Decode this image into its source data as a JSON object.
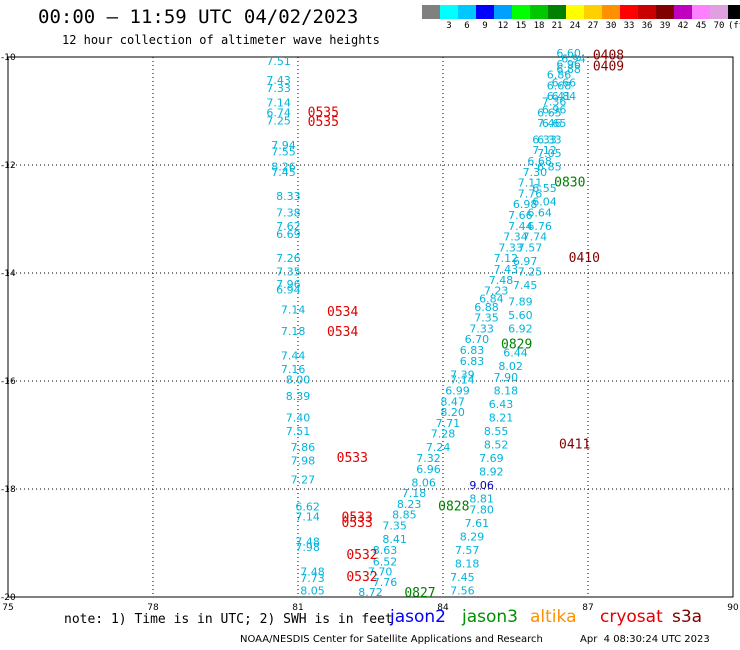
{
  "header": {
    "title": "00:00 – 11:59 UTC 04/02/2023",
    "subtitle": "12 hour collection of altimeter wave heights"
  },
  "scale": {
    "colors": [
      "#808080",
      "#00ffff",
      "#00c8ff",
      "#0000ff",
      "#00a0ff",
      "#00ff00",
      "#00c800",
      "#008000",
      "#ffff00",
      "#ffd000",
      "#ff9000",
      "#ff0000",
      "#c80000",
      "#800000",
      "#c000c0",
      "#ff80ff",
      "#e0a0e0",
      "#000000"
    ],
    "labels": [
      "",
      "3",
      "6",
      "9",
      "12",
      "15",
      "18",
      "21",
      "24",
      "27",
      "30",
      "33",
      "36",
      "39",
      "42",
      "45",
      "70",
      "(ft)"
    ]
  },
  "axes": {
    "lon_ticks": [
      "75",
      "78",
      "81",
      "84",
      "87",
      "90"
    ],
    "lat_ticks": [
      "-10",
      "-12",
      "-14",
      "-16",
      "-18",
      "-20"
    ]
  },
  "wave_points": [
    {
      "v": "7.51",
      "lon": 80.6,
      "lat": -10.15
    },
    {
      "v": "7.43",
      "lon": 80.6,
      "lat": -10.5
    },
    {
      "v": "7.33",
      "lon": 80.6,
      "lat": -10.65
    },
    {
      "v": "7.14",
      "lon": 80.6,
      "lat": -10.92
    },
    {
      "v": "6.74",
      "lon": 80.6,
      "lat": -11.1
    },
    {
      "v": "7.25",
      "lon": 80.6,
      "lat": -11.25
    },
    {
      "v": "7.94",
      "lon": 80.7,
      "lat": -11.7
    },
    {
      "v": "7.55",
      "lon": 80.7,
      "lat": -11.82
    },
    {
      "v": "8.26",
      "lon": 80.7,
      "lat": -12.1
    },
    {
      "v": "7.45",
      "lon": 80.7,
      "lat": -12.2
    },
    {
      "v": "8.33",
      "lon": 80.8,
      "lat": -12.65
    },
    {
      "v": "7.38",
      "lon": 80.8,
      "lat": -12.95
    },
    {
      "v": "7.62",
      "lon": 80.8,
      "lat": -13.2
    },
    {
      "v": "6.69",
      "lon": 80.8,
      "lat": -13.35
    },
    {
      "v": "7.26",
      "lon": 80.8,
      "lat": -13.8
    },
    {
      "v": "7.35",
      "lon": 80.8,
      "lat": -14.05
    },
    {
      "v": "7.96",
      "lon": 80.8,
      "lat": -14.28
    },
    {
      "v": "6.94",
      "lon": 80.8,
      "lat": -14.38
    },
    {
      "v": "7.14",
      "lon": 80.9,
      "lat": -14.75
    },
    {
      "v": "7.18",
      "lon": 80.9,
      "lat": -15.15
    },
    {
      "v": "7.44",
      "lon": 80.9,
      "lat": -15.6
    },
    {
      "v": "7.16",
      "lon": 80.9,
      "lat": -15.85
    },
    {
      "v": "8.00",
      "lon": 81.0,
      "lat": -16.05
    },
    {
      "v": "8.39",
      "lon": 81.0,
      "lat": -16.35
    },
    {
      "v": "7.40",
      "lon": 81.0,
      "lat": -16.75
    },
    {
      "v": "7.51",
      "lon": 81.0,
      "lat": -17.0
    },
    {
      "v": "7.86",
      "lon": 81.1,
      "lat": -17.3
    },
    {
      "v": "7.98",
      "lon": 81.1,
      "lat": -17.55
    },
    {
      "v": "7.27",
      "lon": 81.1,
      "lat": -17.9
    },
    {
      "v": "6.62",
      "lon": 81.2,
      "lat": -18.4
    },
    {
      "v": "7.14",
      "lon": 81.2,
      "lat": -18.58
    },
    {
      "v": "7.48",
      "lon": 81.2,
      "lat": -19.05
    },
    {
      "v": "7.98",
      "lon": 81.2,
      "lat": -19.15
    },
    {
      "v": "7.48",
      "lon": 81.3,
      "lat": -19.6
    },
    {
      "v": "7.73",
      "lon": 81.3,
      "lat": -19.72
    },
    {
      "v": "8.05",
      "lon": 81.3,
      "lat": -19.95
    },
    {
      "v": "8.72",
      "lon": 82.5,
      "lat": -19.98
    },
    {
      "v": "7.76",
      "lon": 82.8,
      "lat": -19.8
    },
    {
      "v": "7.70",
      "lon": 82.7,
      "lat": -19.6
    },
    {
      "v": "6.52",
      "lon": 82.8,
      "lat": -19.42
    },
    {
      "v": "8.63",
      "lon": 82.8,
      "lat": -19.2
    },
    {
      "v": "8.41",
      "lon": 83.0,
      "lat": -19.0
    },
    {
      "v": "7.35",
      "lon": 83.0,
      "lat": -18.75
    },
    {
      "v": "8.85",
      "lon": 83.2,
      "lat": -18.55
    },
    {
      "v": "8.23",
      "lon": 83.3,
      "lat": -18.35
    },
    {
      "v": "7.18",
      "lon": 83.4,
      "lat": -18.15
    },
    {
      "v": "8.06",
      "lon": 83.6,
      "lat": -17.95
    },
    {
      "v": "6.96",
      "lon": 83.7,
      "lat": -17.7
    },
    {
      "v": "7.32",
      "lon": 83.7,
      "lat": -17.5
    },
    {
      "v": "7.24",
      "lon": 83.9,
      "lat": -17.3
    },
    {
      "v": "7.28",
      "lon": 84.0,
      "lat": -17.05
    },
    {
      "v": "7.71",
      "lon": 84.1,
      "lat": -16.85
    },
    {
      "v": "8.20",
      "lon": 84.2,
      "lat": -16.65
    },
    {
      "v": "8.47",
      "lon": 84.2,
      "lat": -16.45
    },
    {
      "v": "6.99",
      "lon": 84.3,
      "lat": -16.25
    },
    {
      "v": "7.14",
      "lon": 84.4,
      "lat": -16.05
    },
    {
      "v": "7.39",
      "lon": 84.4,
      "lat": -15.95
    },
    {
      "v": "6.83",
      "lon": 84.6,
      "lat": -15.7
    },
    {
      "v": "6.83",
      "lon": 84.6,
      "lat": -15.5
    },
    {
      "v": "6.70",
      "lon": 84.7,
      "lat": -15.3
    },
    {
      "v": "7.33",
      "lon": 84.8,
      "lat": -15.1
    },
    {
      "v": "7.35",
      "lon": 84.9,
      "lat": -14.9
    },
    {
      "v": "6.88",
      "lon": 84.9,
      "lat": -14.7
    },
    {
      "v": "6.84",
      "lon": 85.0,
      "lat": -14.55
    },
    {
      "v": "7.23",
      "lon": 85.1,
      "lat": -14.4
    },
    {
      "v": "7.48",
      "lon": 85.2,
      "lat": -14.2
    },
    {
      "v": "7.43",
      "lon": 85.3,
      "lat": -14.0
    },
    {
      "v": "7.12",
      "lon": 85.3,
      "lat": -13.8
    },
    {
      "v": "7.33",
      "lon": 85.4,
      "lat": -13.6
    },
    {
      "v": "7.34",
      "lon": 85.5,
      "lat": -13.4
    },
    {
      "v": "7.44",
      "lon": 85.6,
      "lat": -13.2
    },
    {
      "v": "7.66",
      "lon": 85.6,
      "lat": -13.0
    },
    {
      "v": "6.98",
      "lon": 85.7,
      "lat": -12.8
    },
    {
      "v": "7.76",
      "lon": 85.8,
      "lat": -12.6
    },
    {
      "v": "7.11",
      "lon": 85.8,
      "lat": -12.4
    },
    {
      "v": "7.30",
      "lon": 85.9,
      "lat": -12.2
    },
    {
      "v": "6.68",
      "lon": 86.0,
      "lat": -12.0
    },
    {
      "v": "7.12",
      "lon": 86.1,
      "lat": -11.8
    },
    {
      "v": "6.33",
      "lon": 86.1,
      "lat": -11.6
    },
    {
      "v": "7.46",
      "lon": 86.2,
      "lat": -11.3
    },
    {
      "v": "6.65",
      "lon": 86.2,
      "lat": -11.1
    },
    {
      "v": "7.36",
      "lon": 86.3,
      "lat": -10.9
    },
    {
      "v": "6.41",
      "lon": 86.4,
      "lat": -10.8
    },
    {
      "v": "6.68",
      "lon": 86.4,
      "lat": -10.6
    },
    {
      "v": "6.86",
      "lon": 86.4,
      "lat": -10.4
    },
    {
      "v": "6.96",
      "lon": 86.6,
      "lat": -10.2
    },
    {
      "v": "6.60",
      "lon": 86.6,
      "lat": -10.0
    },
    {
      "v": "7.56",
      "lon": 84.4,
      "lat": -19.95
    },
    {
      "v": "7.45",
      "lon": 84.4,
      "lat": -19.7
    },
    {
      "v": "8.18",
      "lon": 84.5,
      "lat": -19.45
    },
    {
      "v": "7.57",
      "lon": 84.5,
      "lat": -19.2
    },
    {
      "v": "8.29",
      "lon": 84.6,
      "lat": -18.95
    },
    {
      "v": "7.61",
      "lon": 84.7,
      "lat": -18.7
    },
    {
      "v": "7.80",
      "lon": 84.8,
      "lat": -18.45
    },
    {
      "v": "8.81",
      "lon": 84.8,
      "lat": -18.25
    },
    {
      "v": "9.06",
      "lon": 84.8,
      "lat": -18.0
    },
    {
      "v": "8.92",
      "lon": 85.0,
      "lat": -17.75
    },
    {
      "v": "7.69",
      "lon": 85.0,
      "lat": -17.5
    },
    {
      "v": "8.52",
      "lon": 85.1,
      "lat": -17.25
    },
    {
      "v": "8.55",
      "lon": 85.1,
      "lat": -17.0
    },
    {
      "v": "8.21",
      "lon": 85.2,
      "lat": -16.75
    },
    {
      "v": "6.43",
      "lon": 85.2,
      "lat": -16.5
    },
    {
      "v": "8.18",
      "lon": 85.3,
      "lat": -16.25
    },
    {
      "v": "7.90",
      "lon": 85.3,
      "lat": -16.0
    },
    {
      "v": "8.02",
      "lon": 85.4,
      "lat": -15.8
    },
    {
      "v": "6.44",
      "lon": 85.5,
      "lat": -15.55
    },
    {
      "v": "6.92",
      "lon": 85.6,
      "lat": -15.1
    },
    {
      "v": "5.60",
      "lon": 85.6,
      "lat": -14.85
    },
    {
      "v": "7.89",
      "lon": 85.6,
      "lat": -14.6
    },
    {
      "v": "7.45",
      "lon": 85.7,
      "lat": -14.3
    },
    {
      "v": "7.25",
      "lon": 85.8,
      "lat": -14.05
    },
    {
      "v": "6.97",
      "lon": 85.7,
      "lat": -13.85
    },
    {
      "v": "7.57",
      "lon": 85.8,
      "lat": -13.6
    },
    {
      "v": "7.74",
      "lon": 85.9,
      "lat": -13.4
    },
    {
      "v": "6.76",
      "lon": 86.0,
      "lat": -13.2
    },
    {
      "v": "6.64",
      "lon": 86.0,
      "lat": -12.95
    },
    {
      "v": "6.04",
      "lon": 86.1,
      "lat": -12.75
    },
    {
      "v": "6.55",
      "lon": 86.1,
      "lat": -12.5
    },
    {
      "v": "6.85",
      "lon": 86.2,
      "lat": -12.1
    },
    {
      "v": "7.05",
      "lon": 86.2,
      "lat": -11.85
    },
    {
      "v": "6.33",
      "lon": 86.2,
      "lat": -11.6
    },
    {
      "v": "6.65",
      "lon": 86.3,
      "lat": -11.3
    },
    {
      "v": "6.96",
      "lon": 86.3,
      "lat": -11.05
    },
    {
      "v": "6.84",
      "lon": 86.5,
      "lat": -10.8
    },
    {
      "v": "6.66",
      "lon": 86.5,
      "lat": -10.55
    },
    {
      "v": "6.88",
      "lon": 86.6,
      "lat": -10.3
    },
    {
      "v": "6.94",
      "lon": 86.7,
      "lat": -10.1
    }
  ],
  "track_labels": [
    {
      "t": "0535",
      "lon": 81.2,
      "lat": -11.1,
      "c": "#e00000"
    },
    {
      "t": "0535",
      "lon": 81.2,
      "lat": -11.28,
      "c": "#e00000"
    },
    {
      "t": "0534",
      "lon": 81.6,
      "lat": -14.8,
      "c": "#e00000"
    },
    {
      "t": "0534",
      "lon": 81.6,
      "lat": -15.17,
      "c": "#e00000"
    },
    {
      "t": "0533",
      "lon": 81.8,
      "lat": -17.5,
      "c": "#e00000"
    },
    {
      "t": "0533",
      "lon": 81.9,
      "lat": -18.6,
      "c": "#e00000"
    },
    {
      "t": "0533",
      "lon": 81.9,
      "lat": -18.7,
      "c": "#e00000"
    },
    {
      "t": "0532",
      "lon": 82.0,
      "lat": -19.3,
      "c": "#e00000"
    },
    {
      "t": "0532",
      "lon": 82.0,
      "lat": -19.7,
      "c": "#e00000"
    },
    {
      "t": "0827",
      "lon": 83.2,
      "lat": -20.0,
      "c": "#008000"
    },
    {
      "t": "0828",
      "lon": 83.9,
      "lat": -18.4,
      "c": "#008000"
    },
    {
      "t": "0829",
      "lon": 85.2,
      "lat": -15.4,
      "c": "#008000"
    },
    {
      "t": "0830",
      "lon": 86.3,
      "lat": -12.4,
      "c": "#008000"
    },
    {
      "t": "0411",
      "lon": 86.4,
      "lat": -17.25,
      "c": "#800000"
    },
    {
      "t": "0410",
      "lon": 86.6,
      "lat": -13.8,
      "c": "#800000"
    },
    {
      "t": "0409",
      "lon": 87.1,
      "lat": -10.25,
      "c": "#800000"
    },
    {
      "t": "0408",
      "lon": 87.1,
      "lat": -10.05,
      "c": "#800000"
    }
  ],
  "footer": {
    "note": "note: 1) Time is in UTC; 2) SWH is in feet",
    "satellites": [
      {
        "name": "jason2",
        "color": "#0000ff"
      },
      {
        "name": "jason3",
        "color": "#009000"
      },
      {
        "name": "altika",
        "color": "#ff9000"
      },
      {
        "name": "cryosat",
        "color": "#e00000"
      },
      {
        "name": "s3a",
        "color": "#800000"
      }
    ],
    "credit": "NOAA/NESDIS Center for Satellite Applications and Research",
    "timestamp": "Apr  4 08:30:24 UTC 2023"
  }
}
